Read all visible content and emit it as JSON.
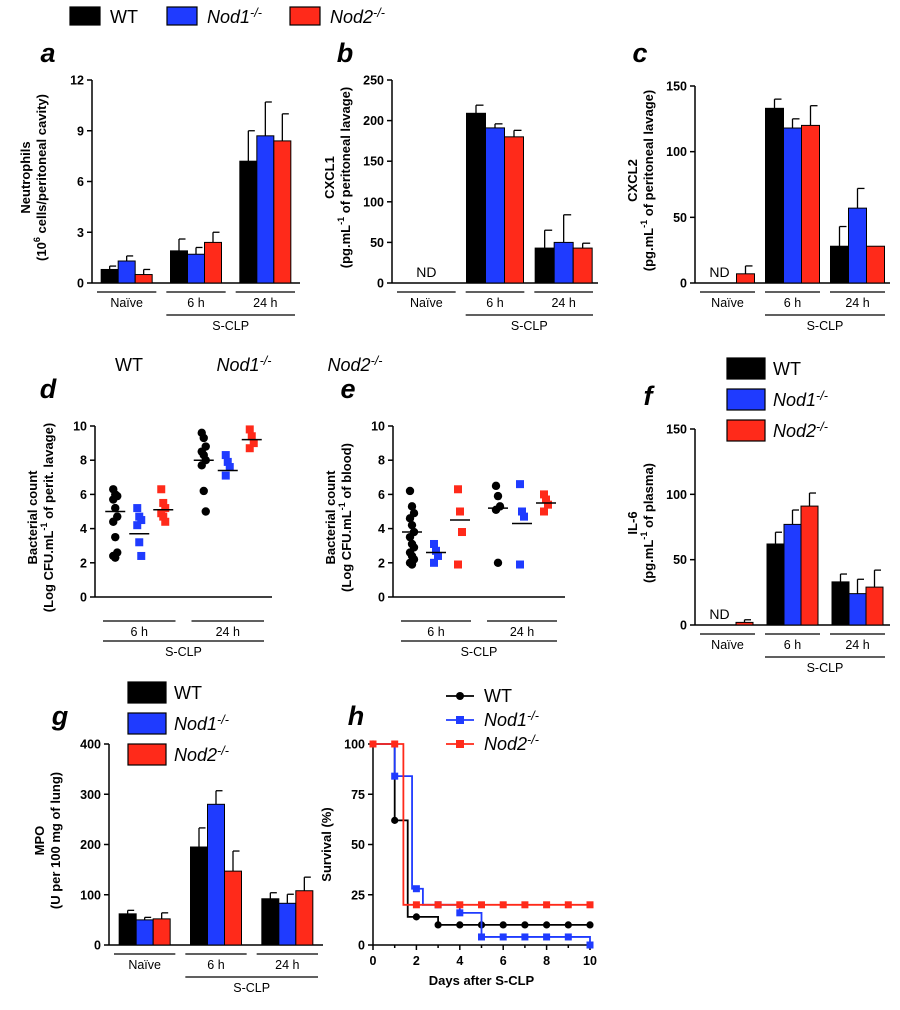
{
  "legend_top": [
    {
      "label": "WT",
      "sup": "",
      "color": "#000000"
    },
    {
      "label": "Nod1",
      "sup": "-/-",
      "color": "#1f3bff"
    },
    {
      "label": "Nod2",
      "sup": "-/-",
      "color": "#ff2a1a"
    }
  ],
  "panel_d_headers": [
    {
      "label": "WT",
      "sup": ""
    },
    {
      "label": "Nod1",
      "sup": "-/-"
    },
    {
      "label": "Nod2",
      "sup": "-/-"
    }
  ],
  "colors": {
    "WT": "#000000",
    "Nod1": "#1f3bff",
    "Nod2": "#ff2a1a"
  },
  "chart_data": [
    {
      "panel": "a",
      "type": "bar",
      "ylabel": "Neutrophils",
      "ylabel2": "(10",
      "ylabel2_sup": "6",
      "ylabel2_rest": " cells/peritoneal cavity)",
      "ylim": [
        0,
        12
      ],
      "yticks": [
        0,
        3,
        6,
        9,
        12
      ],
      "groups": [
        "Naïve",
        "6 h",
        "24 h"
      ],
      "bracket": "S-CLP",
      "series": [
        {
          "name": "WT",
          "values": [
            0.8,
            1.9,
            7.2
          ],
          "errors": [
            0.2,
            0.7,
            1.8
          ]
        },
        {
          "name": "Nod1",
          "values": [
            1.3,
            1.7,
            8.7
          ],
          "errors": [
            0.3,
            0.4,
            2.0
          ]
        },
        {
          "name": "Nod2",
          "values": [
            0.5,
            2.4,
            8.4
          ],
          "errors": [
            0.3,
            0.6,
            1.6
          ]
        }
      ]
    },
    {
      "panel": "b",
      "type": "bar",
      "ylabel": "CXCL1",
      "ylabel2": "(pg.mL",
      "ylabel2_sup": "-1",
      "ylabel2_rest": " of peritoneal lavage)",
      "ylim": [
        0,
        250
      ],
      "yticks": [
        0,
        50,
        100,
        150,
        200,
        250
      ],
      "groups": [
        "Naïve",
        "6 h",
        "24 h"
      ],
      "bracket": "S-CLP",
      "nd": "ND",
      "series": [
        {
          "name": "WT",
          "values": [
            null,
            209,
            43
          ],
          "errors": [
            0,
            10,
            22
          ]
        },
        {
          "name": "Nod1",
          "values": [
            null,
            191,
            50
          ],
          "errors": [
            0,
            5,
            34
          ]
        },
        {
          "name": "Nod2",
          "values": [
            null,
            180,
            43
          ],
          "errors": [
            0,
            8,
            6
          ]
        }
      ]
    },
    {
      "panel": "c",
      "type": "bar",
      "ylabel": "CXCL2",
      "ylabel2": "(pg.mL",
      "ylabel2_sup": "-1",
      "ylabel2_rest": " of peritoneal lavage)",
      "ylim": [
        0,
        150
      ],
      "yticks": [
        0,
        50,
        100,
        150
      ],
      "groups": [
        "Naïve",
        "6 h",
        "24 h"
      ],
      "bracket": "S-CLP",
      "nd": "ND",
      "series": [
        {
          "name": "WT",
          "values": [
            null,
            133,
            28
          ],
          "errors": [
            0,
            7,
            15
          ]
        },
        {
          "name": "Nod1",
          "values": [
            null,
            118,
            57
          ],
          "errors": [
            0,
            7,
            15
          ]
        },
        {
          "name": "Nod2",
          "values": [
            7,
            120,
            28
          ],
          "errors": [
            6,
            15,
            0
          ]
        }
      ]
    },
    {
      "panel": "d",
      "type": "scatter",
      "ylabel": "Bacterial count",
      "ylabel2": "(Log CFU.mL",
      "ylabel2_sup": "-1",
      "ylabel2_rest": " of perit. lavage)",
      "ylim": [
        0,
        10
      ],
      "yticks": [
        0,
        2,
        4,
        6,
        8,
        10
      ],
      "groups": [
        "6 h",
        "24 h"
      ],
      "bracket": "S-CLP",
      "series": [
        {
          "name": "WT",
          "marker": "circle",
          "points": [
            [
              6.3,
              6.0,
              5.9,
              5.7,
              5.2,
              4.7,
              4.4,
              3.5,
              2.6,
              2.4,
              2.3
            ],
            [
              9.6,
              9.3,
              8.8,
              8.5,
              8.3,
              8.0,
              7.7,
              6.2,
              5.0
            ]
          ],
          "means": [
            5.0,
            8.0
          ]
        },
        {
          "name": "Nod1",
          "marker": "square",
          "points": [
            [
              5.2,
              4.7,
              4.5,
              4.2,
              3.2,
              2.4
            ],
            [
              8.3,
              7.9,
              7.6,
              7.1
            ]
          ],
          "means": [
            3.7,
            7.4
          ]
        },
        {
          "name": "Nod2",
          "marker": "square",
          "points": [
            [
              6.3,
              5.5,
              5.2,
              4.9,
              4.7,
              4.4
            ],
            [
              9.8,
              9.4,
              9.0,
              8.7
            ]
          ],
          "means": [
            5.1,
            9.2
          ]
        }
      ]
    },
    {
      "panel": "e",
      "type": "scatter",
      "ylabel": "Bacterial count",
      "ylabel2": "(Log CFU.mL",
      "ylabel2_sup": "-1",
      "ylabel2_rest": " of blood)",
      "ylim": [
        0,
        10
      ],
      "yticks": [
        0,
        2,
        4,
        6,
        8,
        10
      ],
      "groups": [
        "6 h",
        "24 h"
      ],
      "bracket": "S-CLP",
      "series": [
        {
          "name": "WT",
          "marker": "circle",
          "points": [
            [
              6.2,
              5.3,
              4.9,
              4.6,
              4.2,
              3.8,
              3.5,
              3.1,
              2.9,
              2.6,
              2.4,
              2.2,
              2.0,
              1.9
            ],
            [
              6.5,
              5.9,
              5.3,
              5.1,
              2.0
            ]
          ],
          "means": [
            3.8,
            5.2
          ]
        },
        {
          "name": "Nod1",
          "marker": "square",
          "points": [
            [
              3.1,
              2.7,
              2.4,
              2.0
            ],
            [
              6.6,
              5.0,
              4.7,
              1.9
            ]
          ],
          "means": [
            2.6,
            4.3
          ]
        },
        {
          "name": "Nod2",
          "marker": "square",
          "points": [
            [
              6.3,
              5.0,
              3.8,
              1.9
            ],
            [
              6.0,
              5.7,
              5.4,
              5.0
            ]
          ],
          "means": [
            4.5,
            5.5
          ]
        }
      ]
    },
    {
      "panel": "f",
      "type": "bar",
      "ylabel": "IL-6",
      "ylabel2": "(pg.mL",
      "ylabel2_sup": "-1",
      "ylabel2_rest": " of plasma)",
      "ylim": [
        0,
        150
      ],
      "yticks": [
        0,
        50,
        100,
        150
      ],
      "groups": [
        "Naïve",
        "6 h",
        "24 h"
      ],
      "bracket": "S-CLP",
      "nd": "ND",
      "legend": true,
      "series": [
        {
          "name": "WT",
          "values": [
            null,
            62,
            33
          ],
          "errors": [
            0,
            9,
            6
          ]
        },
        {
          "name": "Nod1",
          "values": [
            null,
            77,
            24
          ],
          "errors": [
            0,
            11,
            11
          ]
        },
        {
          "name": "Nod2",
          "values": [
            2,
            91,
            29
          ],
          "errors": [
            2,
            10,
            13
          ]
        }
      ]
    },
    {
      "panel": "g",
      "type": "bar",
      "ylabel": "MPO",
      "ylabel2": "(U per 100 mg of lung)",
      "ylabel2_sup": "",
      "ylabel2_rest": "",
      "ylim": [
        0,
        400
      ],
      "yticks": [
        0,
        100,
        200,
        300,
        400
      ],
      "groups": [
        "Naïve",
        "6 h",
        "24 h"
      ],
      "bracket": "S-CLP",
      "legend": true,
      "series": [
        {
          "name": "WT",
          "values": [
            62,
            195,
            92
          ],
          "errors": [
            7,
            38,
            12
          ]
        },
        {
          "name": "Nod1",
          "values": [
            50,
            280,
            83
          ],
          "errors": [
            5,
            27,
            18
          ]
        },
        {
          "name": "Nod2",
          "values": [
            52,
            147,
            108
          ],
          "errors": [
            12,
            40,
            27
          ]
        }
      ]
    },
    {
      "panel": "h",
      "type": "line",
      "ylabel": "Survival (%)",
      "xlabel": "Days after S-CLP",
      "xlim": [
        0,
        10
      ],
      "xticks": [
        0,
        2,
        4,
        6,
        8,
        10
      ],
      "ylim": [
        0,
        100
      ],
      "yticks": [
        0,
        25,
        50,
        75,
        100
      ],
      "legend": true,
      "series": [
        {
          "name": "WT",
          "marker": "circle",
          "steps": [
            [
              0,
              100
            ],
            [
              1,
              62
            ],
            [
              1.6,
              14
            ],
            [
              3,
              10
            ],
            [
              10,
              10
            ]
          ],
          "points": [
            [
              0,
              100
            ],
            [
              1,
              62
            ],
            [
              2,
              14
            ],
            [
              3,
              10
            ],
            [
              4,
              10
            ],
            [
              5,
              10
            ],
            [
              6,
              10
            ],
            [
              7,
              10
            ],
            [
              8,
              10
            ],
            [
              9,
              10
            ],
            [
              10,
              10
            ]
          ]
        },
        {
          "name": "Nod1",
          "marker": "square",
          "steps": [
            [
              0,
              100
            ],
            [
              1,
              84
            ],
            [
              1.8,
              28
            ],
            [
              2.3,
              20
            ],
            [
              4,
              16
            ],
            [
              5,
              4
            ],
            [
              9.8,
              4
            ],
            [
              10,
              0
            ]
          ],
          "points": [
            [
              0,
              100
            ],
            [
              1,
              84
            ],
            [
              2,
              28
            ],
            [
              3,
              20
            ],
            [
              4,
              16
            ],
            [
              5,
              4
            ],
            [
              6,
              4
            ],
            [
              7,
              4
            ],
            [
              8,
              4
            ],
            [
              9,
              4
            ],
            [
              10,
              0
            ]
          ]
        },
        {
          "name": "Nod2",
          "marker": "square",
          "steps": [
            [
              0,
              100
            ],
            [
              1.4,
              20
            ],
            [
              10,
              20
            ]
          ],
          "points": [
            [
              0,
              100
            ],
            [
              1,
              100
            ],
            [
              2,
              20
            ],
            [
              3,
              20
            ],
            [
              4,
              20
            ],
            [
              5,
              20
            ],
            [
              6,
              20
            ],
            [
              7,
              20
            ],
            [
              8,
              20
            ],
            [
              9,
              20
            ],
            [
              10,
              20
            ]
          ]
        }
      ]
    }
  ]
}
